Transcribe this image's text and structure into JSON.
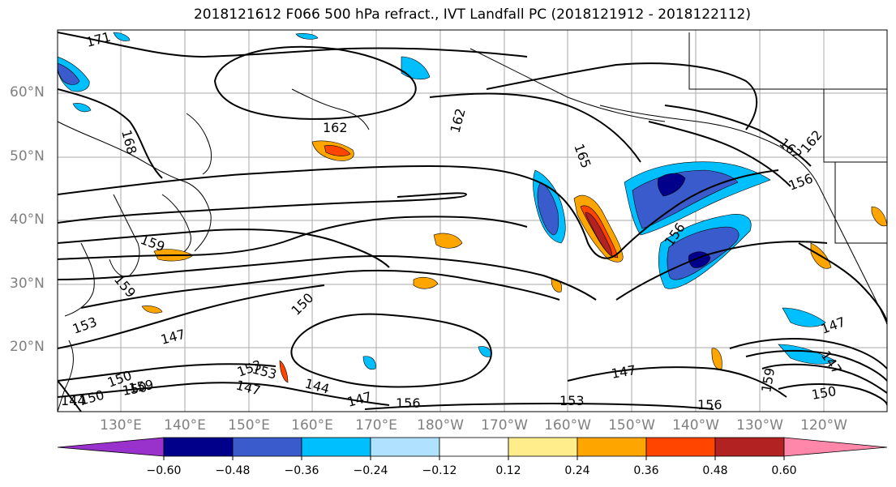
{
  "title": "2018121612 F066 500 hPa refract., IVT Landfall PC (2018121912 - 2018122112)",
  "lat_labels": [
    "60°N",
    "50°N",
    "40°N",
    "30°N",
    "20°N"
  ],
  "lon_labels": [
    "130°E",
    "140°E",
    "150°E",
    "160°E",
    "170°E",
    "180°W",
    "170°W",
    "160°W",
    "150°W",
    "140°W",
    "130°W",
    "120°W"
  ],
  "colorbar": {
    "ticks": [
      "−0.60",
      "−0.48",
      "−0.36",
      "−0.24",
      "−0.12",
      "0.12",
      "0.24",
      "0.36",
      "0.48",
      "0.60"
    ],
    "colors": [
      "#9932cc",
      "#00008b",
      "#3a5bcc",
      "#00bfff",
      "#b0e2ff",
      "#ffffff",
      "#ffec8b",
      "#ffa500",
      "#ff4500",
      "#b22222",
      "#ff88aa"
    ]
  },
  "contour_labels": [
    "171",
    "168",
    "162",
    "162",
    "165",
    "162",
    "162",
    "156",
    "159",
    "156",
    "159",
    "153",
    "150",
    "147",
    "144",
    "147",
    "153",
    "150",
    "150",
    "147",
    "147",
    "159",
    "153",
    "156",
    "147",
    "150",
    "147",
    "144",
    "153",
    "159",
    "156",
    "150"
  ]
}
